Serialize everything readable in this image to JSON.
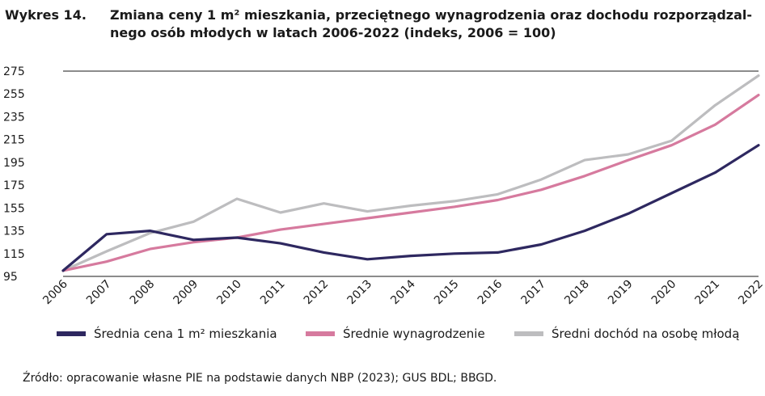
{
  "title": {
    "number": "Wykres 14.",
    "line1": "Zmiana ceny 1 m² mieszkania, przeciętnego wynagrodzenia oraz dochodu rozporządzal-",
    "line2": "nego osób młodych w latach 2006-2022 (indeks, 2006 = 100)"
  },
  "chart_data": {
    "type": "line",
    "x": [
      "2006",
      "2007",
      "2008",
      "2009",
      "2010",
      "2011",
      "2012",
      "2013",
      "2014",
      "2015",
      "2016",
      "2017",
      "2018",
      "2019",
      "2020",
      "2021",
      "2022"
    ],
    "ylim": [
      95,
      275
    ],
    "yticks": [
      95,
      115,
      135,
      155,
      175,
      195,
      215,
      235,
      255,
      275
    ],
    "grid": false,
    "legend_position": "bottom",
    "series": [
      {
        "name": "Średnia cena 1 m² mieszkania",
        "color": "#2e2860",
        "values": [
          100,
          132,
          135,
          127,
          129,
          124,
          116,
          110,
          113,
          115,
          116,
          123,
          135,
          150,
          168,
          186,
          210
        ]
      },
      {
        "name": "Średnie wynagrodzenie",
        "color": "#d67a9e",
        "values": [
          100,
          108,
          119,
          125,
          129,
          136,
          141,
          146,
          151,
          156,
          162,
          171,
          183,
          197,
          210,
          228,
          254
        ]
      },
      {
        "name": "Średni dochód na osobę młodą",
        "color": "#bdbdbf",
        "values": [
          100,
          117,
          133,
          143,
          163,
          151,
          159,
          152,
          157,
          161,
          167,
          180,
          197,
          202,
          214,
          245,
          271
        ]
      }
    ]
  },
  "source": "Źródło: opracowanie własne PIE na podstawie danych NBP (2023); GUS BDL; BBGD."
}
